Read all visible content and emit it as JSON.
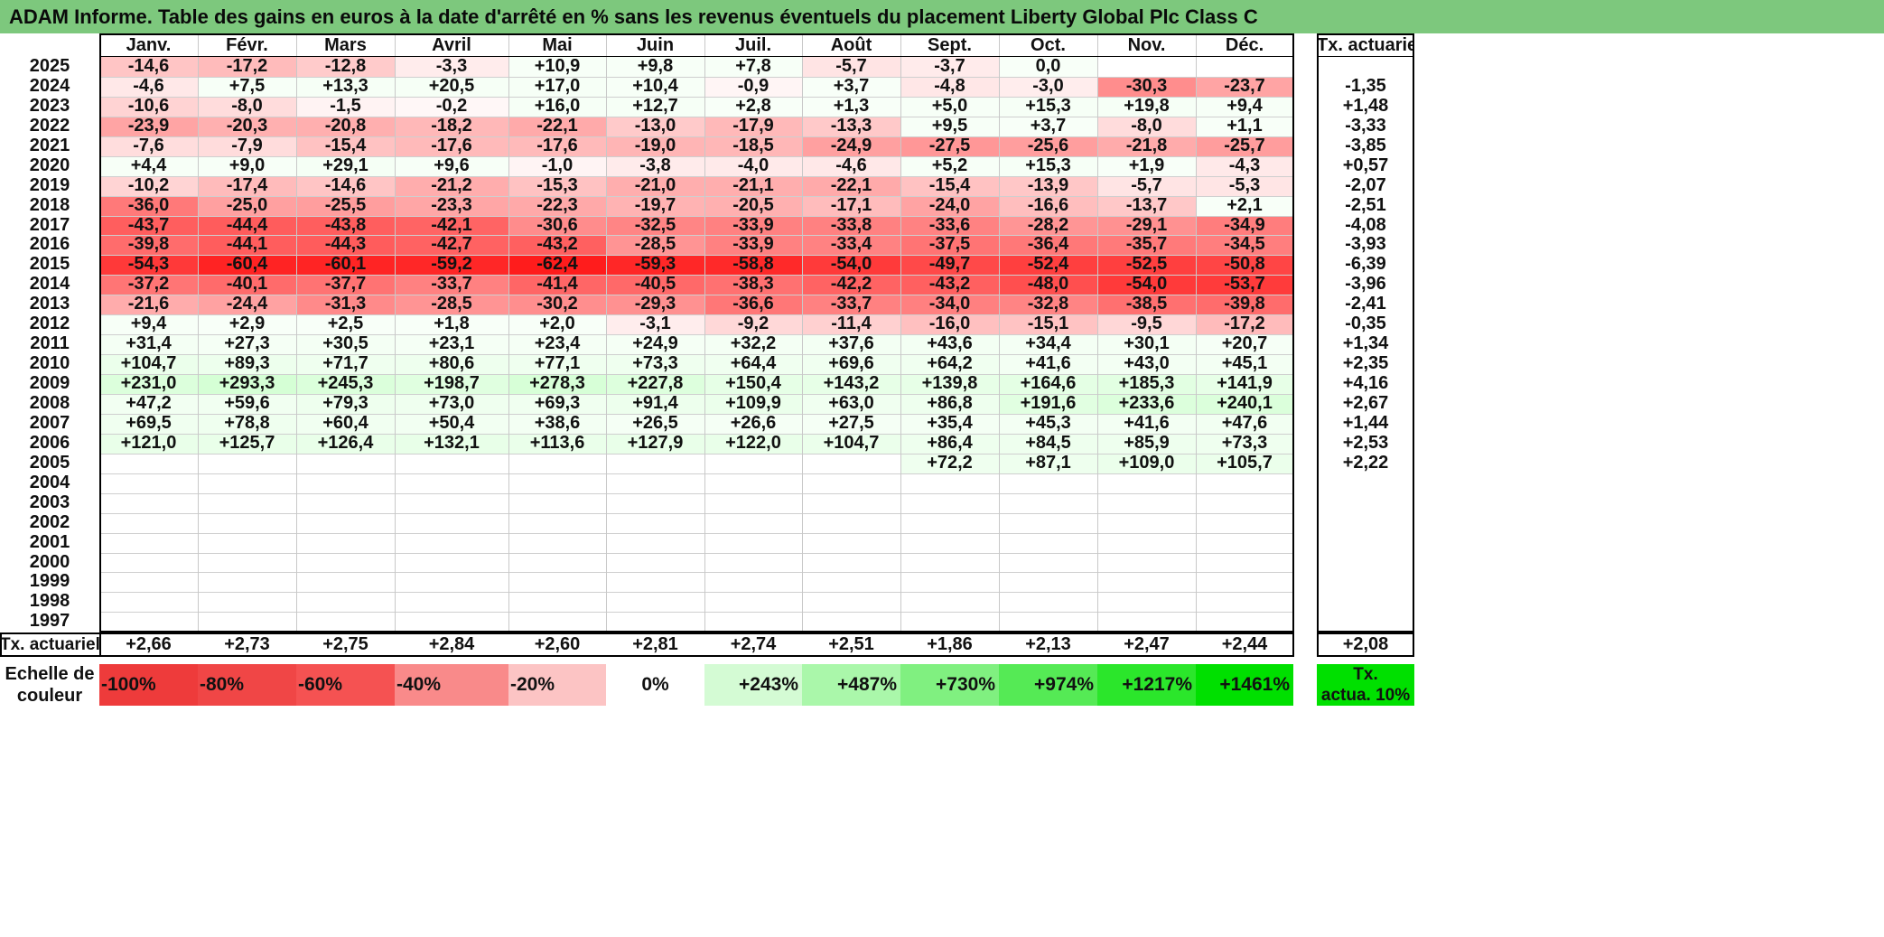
{
  "title": "ADAM Informe. Table des gains en euros à la date d'arrêté en % sans les revenus éventuels du placement Liberty Global Plc Class C",
  "months": [
    "Janv.",
    "Févr.",
    "Mars",
    "Avril",
    "Mai",
    "Juin",
    "Juil.",
    "Août",
    "Sept.",
    "Oct.",
    "Nov.",
    "Déc."
  ],
  "annual_header": "Tx. actuariel",
  "rows": [
    {
      "year": "2025",
      "values": [
        "-14,6",
        "-17,2",
        "-12,8",
        "-3,3",
        "+10,9",
        "+9,8",
        "+7,8",
        "-5,7",
        "-3,7",
        "0,0",
        "",
        ""
      ],
      "annual": ""
    },
    {
      "year": "2024",
      "values": [
        "-4,6",
        "+7,5",
        "+13,3",
        "+20,5",
        "+17,0",
        "+10,4",
        "-0,9",
        "+3,7",
        "-4,8",
        "-3,0",
        "-30,3",
        "-23,7"
      ],
      "annual": "-1,35"
    },
    {
      "year": "2023",
      "values": [
        "-10,6",
        "-8,0",
        "-1,5",
        "-0,2",
        "+16,0",
        "+12,7",
        "+2,8",
        "+1,3",
        "+5,0",
        "+15,3",
        "+19,8",
        "+9,4"
      ],
      "annual": "+1,48"
    },
    {
      "year": "2022",
      "values": [
        "-23,9",
        "-20,3",
        "-20,8",
        "-18,2",
        "-22,1",
        "-13,0",
        "-17,9",
        "-13,3",
        "+9,5",
        "+3,7",
        "-8,0",
        "+1,1"
      ],
      "annual": "-3,33"
    },
    {
      "year": "2021",
      "values": [
        "-7,6",
        "-7,9",
        "-15,4",
        "-17,6",
        "-17,6",
        "-19,0",
        "-18,5",
        "-24,9",
        "-27,5",
        "-25,6",
        "-21,8",
        "-25,7"
      ],
      "annual": "-3,85"
    },
    {
      "year": "2020",
      "values": [
        "+4,4",
        "+9,0",
        "+29,1",
        "+9,6",
        "-1,0",
        "-3,8",
        "-4,0",
        "-4,6",
        "+5,2",
        "+15,3",
        "+1,9",
        "-4,3"
      ],
      "annual": "+0,57"
    },
    {
      "year": "2019",
      "values": [
        "-10,2",
        "-17,4",
        "-14,6",
        "-21,2",
        "-15,3",
        "-21,0",
        "-21,1",
        "-22,1",
        "-15,4",
        "-13,9",
        "-5,7",
        "-5,3"
      ],
      "annual": "-2,07"
    },
    {
      "year": "2018",
      "values": [
        "-36,0",
        "-25,0",
        "-25,5",
        "-23,3",
        "-22,3",
        "-19,7",
        "-20,5",
        "-17,1",
        "-24,0",
        "-16,6",
        "-13,7",
        "+2,1"
      ],
      "annual": "-2,51"
    },
    {
      "year": "2017",
      "values": [
        "-43,7",
        "-44,4",
        "-43,8",
        "-42,1",
        "-30,6",
        "-32,5",
        "-33,9",
        "-33,8",
        "-33,6",
        "-28,2",
        "-29,1",
        "-34,9"
      ],
      "annual": "-4,08"
    },
    {
      "year": "2016",
      "values": [
        "-39,8",
        "-44,1",
        "-44,3",
        "-42,7",
        "-43,2",
        "-28,5",
        "-33,9",
        "-33,4",
        "-37,5",
        "-36,4",
        "-35,7",
        "-34,5"
      ],
      "annual": "-3,93"
    },
    {
      "year": "2015",
      "values": [
        "-54,3",
        "-60,4",
        "-60,1",
        "-59,2",
        "-62,4",
        "-59,3",
        "-58,8",
        "-54,0",
        "-49,7",
        "-52,4",
        "-52,5",
        "-50,8"
      ],
      "annual": "-6,39"
    },
    {
      "year": "2014",
      "values": [
        "-37,2",
        "-40,1",
        "-37,7",
        "-33,7",
        "-41,4",
        "-40,5",
        "-38,3",
        "-42,2",
        "-43,2",
        "-48,0",
        "-54,0",
        "-53,7"
      ],
      "annual": "-3,96"
    },
    {
      "year": "2013",
      "values": [
        "-21,6",
        "-24,4",
        "-31,3",
        "-28,5",
        "-30,2",
        "-29,3",
        "-36,6",
        "-33,7",
        "-34,0",
        "-32,8",
        "-38,5",
        "-39,8"
      ],
      "annual": "-2,41"
    },
    {
      "year": "2012",
      "values": [
        "+9,4",
        "+2,9",
        "+2,5",
        "+1,8",
        "+2,0",
        "-3,1",
        "-9,2",
        "-11,4",
        "-16,0",
        "-15,1",
        "-9,5",
        "-17,2"
      ],
      "annual": "-0,35"
    },
    {
      "year": "2011",
      "values": [
        "+31,4",
        "+27,3",
        "+30,5",
        "+23,1",
        "+23,4",
        "+24,9",
        "+32,2",
        "+37,6",
        "+43,6",
        "+34,4",
        "+30,1",
        "+20,7"
      ],
      "annual": "+1,34"
    },
    {
      "year": "2010",
      "values": [
        "+104,7",
        "+89,3",
        "+71,7",
        "+80,6",
        "+77,1",
        "+73,3",
        "+64,4",
        "+69,6",
        "+64,2",
        "+41,6",
        "+43,0",
        "+45,1"
      ],
      "annual": "+2,35"
    },
    {
      "year": "2009",
      "values": [
        "+231,0",
        "+293,3",
        "+245,3",
        "+198,7",
        "+278,3",
        "+227,8",
        "+150,4",
        "+143,2",
        "+139,8",
        "+164,6",
        "+185,3",
        "+141,9"
      ],
      "annual": "+4,16"
    },
    {
      "year": "2008",
      "values": [
        "+47,2",
        "+59,6",
        "+79,3",
        "+73,0",
        "+69,3",
        "+91,4",
        "+109,9",
        "+63,0",
        "+86,8",
        "+191,6",
        "+233,6",
        "+240,1"
      ],
      "annual": "+2,67"
    },
    {
      "year": "2007",
      "values": [
        "+69,5",
        "+78,8",
        "+60,4",
        "+50,4",
        "+38,6",
        "+26,5",
        "+26,6",
        "+27,5",
        "+35,4",
        "+45,3",
        "+41,6",
        "+47,6"
      ],
      "annual": "+1,44"
    },
    {
      "year": "2006",
      "values": [
        "+121,0",
        "+125,7",
        "+126,4",
        "+132,1",
        "+113,6",
        "+127,9",
        "+122,0",
        "+104,7",
        "+86,4",
        "+84,5",
        "+85,9",
        "+73,3"
      ],
      "annual": "+2,53"
    },
    {
      "year": "2005",
      "values": [
        "",
        "",
        "",
        "",
        "",
        "",
        "",
        "",
        "+72,2",
        "+87,1",
        "+109,0",
        "+105,7"
      ],
      "annual": "+2,22"
    },
    {
      "year": "2004",
      "values": [
        "",
        "",
        "",
        "",
        "",
        "",
        "",
        "",
        "",
        "",
        "",
        ""
      ],
      "annual": ""
    },
    {
      "year": "2003",
      "values": [
        "",
        "",
        "",
        "",
        "",
        "",
        "",
        "",
        "",
        "",
        "",
        ""
      ],
      "annual": ""
    },
    {
      "year": "2002",
      "values": [
        "",
        "",
        "",
        "",
        "",
        "",
        "",
        "",
        "",
        "",
        "",
        ""
      ],
      "annual": ""
    },
    {
      "year": "2001",
      "values": [
        "",
        "",
        "",
        "",
        "",
        "",
        "",
        "",
        "",
        "",
        "",
        ""
      ],
      "annual": ""
    },
    {
      "year": "2000",
      "values": [
        "",
        "",
        "",
        "",
        "",
        "",
        "",
        "",
        "",
        "",
        "",
        ""
      ],
      "annual": ""
    },
    {
      "year": "1999",
      "values": [
        "",
        "",
        "",
        "",
        "",
        "",
        "",
        "",
        "",
        "",
        "",
        ""
      ],
      "annual": ""
    },
    {
      "year": "1998",
      "values": [
        "",
        "",
        "",
        "",
        "",
        "",
        "",
        "",
        "",
        "",
        "",
        ""
      ],
      "annual": ""
    },
    {
      "year": "1997",
      "values": [
        "",
        "",
        "",
        "",
        "",
        "",
        "",
        "",
        "",
        "",
        "",
        ""
      ],
      "annual": ""
    }
  ],
  "footer": {
    "label": "Tx. actuariel",
    "values": [
      "+2,66",
      "+2,73",
      "+2,75",
      "+2,84",
      "+2,60",
      "+2,81",
      "+2,74",
      "+2,51",
      "+1,86",
      "+2,13",
      "+2,47",
      "+2,44"
    ],
    "annual": "+2,08"
  },
  "scale": {
    "label_line1": "Echelle de",
    "label_line2": "couleur",
    "items": [
      {
        "label": "-100%",
        "color": "#ee3b3b",
        "align": "left"
      },
      {
        "label": "-80%",
        "color": "#f04646",
        "align": "left"
      },
      {
        "label": "-60%",
        "color": "#f55252",
        "align": "left"
      },
      {
        "label": "-40%",
        "color": "#f98a8a",
        "align": "left"
      },
      {
        "label": "-20%",
        "color": "#fcc4c4",
        "align": "left"
      },
      {
        "label": "0%",
        "color": "#ffffff",
        "align": "center"
      },
      {
        "label": "+243%",
        "color": "#d4fbd4",
        "align": "right"
      },
      {
        "label": "+487%",
        "color": "#aaf7aa",
        "align": "right"
      },
      {
        "label": "+730%",
        "color": "#80f080",
        "align": "right"
      },
      {
        "label": "+974%",
        "color": "#55ea55",
        "align": "right"
      },
      {
        "label": "+1217%",
        "color": "#2be62b",
        "align": "right"
      },
      {
        "label": "+1461%",
        "color": "#00e000",
        "align": "right"
      }
    ],
    "tx_legend_line1": "Tx.",
    "tx_legend_line2": "actua. 10%",
    "tx_legend_color": "#00e000"
  }
}
